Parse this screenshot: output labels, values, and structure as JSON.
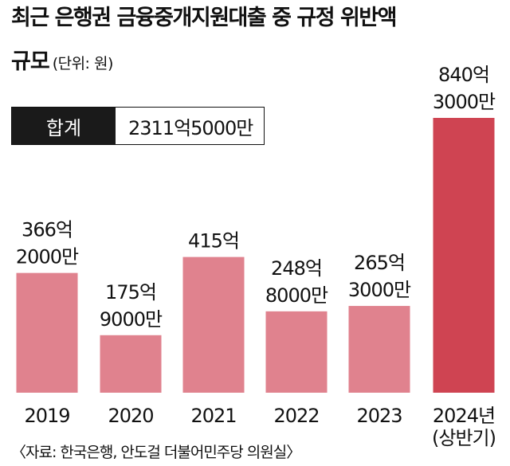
{
  "title": {
    "line1": "최근 은행권 금융중개지원대출 중 규정 위반액",
    "line2": "규모",
    "unit": "(단위: 원)"
  },
  "total": {
    "label": "합계",
    "value": "2311억5000만"
  },
  "source": "〈자료: 한국은행, 안도걸 더불어민주당 의원실〉",
  "colors": {
    "bar": "#e0828e",
    "highlight": "#cf4452"
  },
  "chart_data": {
    "type": "bar",
    "title": "최근 은행권 금융중개지원대출 중 규정 위반액 규모",
    "unit": "원",
    "categories": [
      "2019",
      "2020",
      "2021",
      "2022",
      "2023",
      "2024년 (상반기)"
    ],
    "values": [
      36620000000,
      17590000000,
      41500000000,
      24880000000,
      26530000000,
      84030000000
    ],
    "value_labels": [
      [
        "366억",
        "2000만"
      ],
      [
        "175억",
        "9000만"
      ],
      [
        "415억"
      ],
      [
        "248억",
        "8000만"
      ],
      [
        "265억",
        "3000만"
      ],
      [
        "840억",
        "3000만"
      ]
    ],
    "category_labels": [
      [
        "2019"
      ],
      [
        "2020"
      ],
      [
        "2021"
      ],
      [
        "2022"
      ],
      [
        "2023"
      ],
      [
        "2024년",
        "(상반기)"
      ]
    ],
    "highlight_index": 5
  }
}
